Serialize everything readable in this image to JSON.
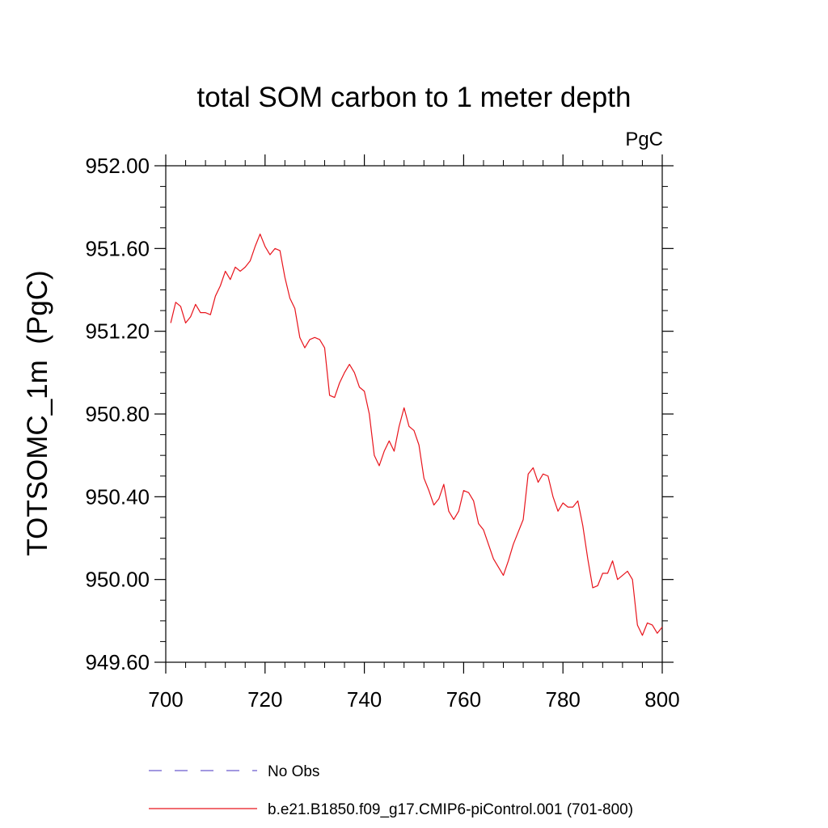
{
  "chart_data": {
    "type": "line",
    "title": "total SOM carbon to 1 meter depth",
    "units_label": "PgC",
    "xlabel": "",
    "ylabel": "TOTSOMC_1m  (PgC)",
    "xlim": [
      700,
      800
    ],
    "ylim": [
      949.6,
      952.0
    ],
    "x_ticks": [
      "700",
      "720",
      "740",
      "760",
      "780",
      "800"
    ],
    "y_ticks": [
      "949.60",
      "950.00",
      "950.40",
      "950.80",
      "951.20",
      "951.60",
      "952.00"
    ],
    "grid": false,
    "legend_position": "bottom-left",
    "series": [
      {
        "name": "No Obs",
        "style": "dashed",
        "color": "#6a5acd",
        "x": [],
        "values": []
      },
      {
        "name": "b.e21.B1850.f09_g17.CMIP6-piControl.001 (701-800)",
        "style": "solid",
        "color": "#e8141c",
        "x": [
          701,
          702,
          703,
          704,
          705,
          706,
          707,
          708,
          709,
          710,
          711,
          712,
          713,
          714,
          715,
          716,
          717,
          718,
          719,
          720,
          721,
          722,
          723,
          724,
          725,
          726,
          727,
          728,
          729,
          730,
          731,
          732,
          733,
          734,
          735,
          736,
          737,
          738,
          739,
          740,
          741,
          742,
          743,
          744,
          745,
          746,
          747,
          748,
          749,
          750,
          751,
          752,
          753,
          754,
          755,
          756,
          757,
          758,
          759,
          760,
          761,
          762,
          763,
          764,
          765,
          766,
          767,
          768,
          769,
          770,
          771,
          772,
          773,
          774,
          775,
          776,
          777,
          778,
          779,
          780,
          781,
          782,
          783,
          784,
          785,
          786,
          787,
          788,
          789,
          790,
          791,
          792,
          793,
          794,
          795,
          796,
          797,
          798,
          799,
          800
        ],
        "values": [
          951.24,
          951.34,
          951.32,
          951.24,
          951.27,
          951.33,
          951.29,
          951.29,
          951.28,
          951.37,
          951.42,
          951.49,
          951.45,
          951.51,
          951.49,
          951.51,
          951.54,
          951.61,
          951.67,
          951.61,
          951.57,
          951.6,
          951.59,
          951.46,
          951.36,
          951.31,
          951.17,
          951.12,
          951.16,
          951.17,
          951.16,
          951.12,
          950.89,
          950.88,
          950.95,
          951.0,
          951.04,
          951.0,
          950.93,
          950.91,
          950.8,
          950.6,
          950.55,
          950.62,
          950.67,
          950.62,
          950.74,
          950.83,
          950.74,
          950.72,
          950.65,
          950.49,
          950.43,
          950.36,
          950.39,
          950.46,
          950.33,
          950.29,
          950.33,
          950.43,
          950.42,
          950.38,
          950.27,
          950.24,
          950.17,
          950.1,
          950.06,
          950.02,
          950.09,
          950.17,
          950.23,
          950.29,
          950.51,
          950.54,
          950.47,
          950.51,
          950.5,
          950.4,
          950.33,
          950.37,
          950.35,
          950.35,
          950.38,
          950.26,
          950.1,
          949.96,
          949.97,
          950.03,
          950.03,
          950.09,
          950.0,
          950.02,
          950.04,
          950.0,
          949.78,
          949.73,
          949.79,
          949.78,
          949.74,
          949.77
        ]
      }
    ]
  }
}
